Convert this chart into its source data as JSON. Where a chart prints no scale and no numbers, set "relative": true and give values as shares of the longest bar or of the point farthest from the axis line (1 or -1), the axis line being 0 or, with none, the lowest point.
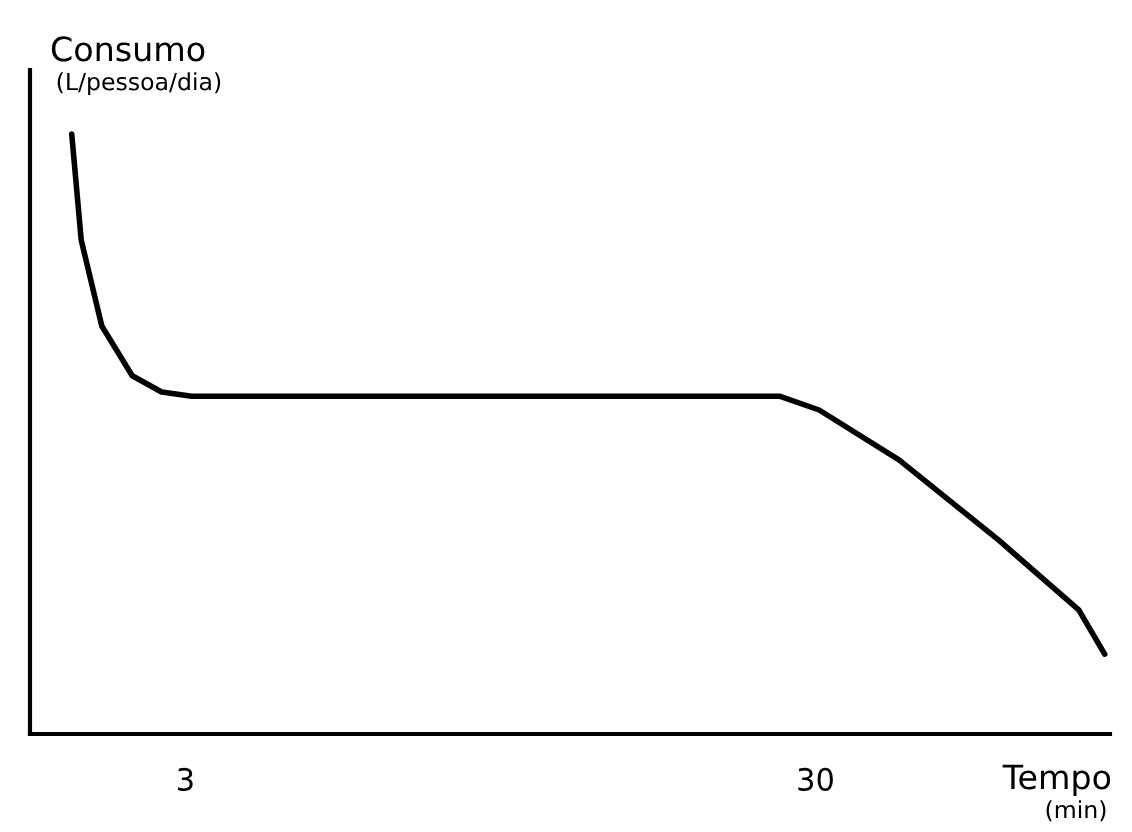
{
  "chart_data": {
    "type": "line",
    "relative": true,
    "ylabel": "Consumo\n(L/pessoa/dia)",
    "xlabel": "Tempo\n(min)",
    "log": "x",
    "xlim": [
      1.7,
      88
    ],
    "xticks": [
      3,
      30
    ],
    "grid": false,
    "legend": false,
    "marker": "none",
    "line_style": "solid",
    "series": [
      {
        "color": "#000000",
        "x": [
          1.98,
          2.05,
          2.21,
          2.47,
          2.75,
          3.07,
          6.59,
          13.6,
          26.3,
          30.4,
          40.7,
          58.6,
          78.5,
          86.3
        ],
        "values": [
          1.0,
          0.823,
          0.68,
          0.597,
          0.57,
          0.563,
          0.563,
          0.563,
          0.563,
          0.54,
          0.457,
          0.323,
          0.207,
          0.133
        ]
      }
    ]
  }
}
